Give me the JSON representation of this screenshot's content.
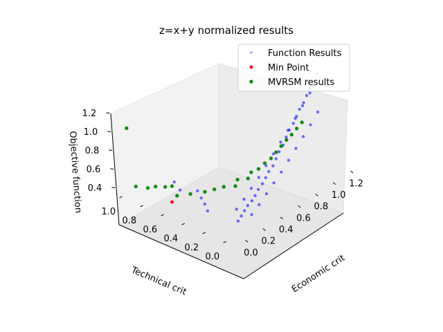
{
  "chart_data": {
    "type": "scatter",
    "projection": "3d",
    "title": "z=x+y normalized results",
    "xlabel": "Economic crit",
    "ylabel": "Technical crit",
    "zlabel": "Objective function",
    "xlim": [
      -0.1,
      1.4
    ],
    "ylim": [
      -0.1,
      1.1
    ],
    "zlim": [
      0.35,
      1.35
    ],
    "xticks": [
      "0.0",
      "0.2",
      "0.4",
      "0.6",
      "0.8",
      "1.0",
      "1.2"
    ],
    "yticks": [
      "0.0",
      "0.2",
      "0.4",
      "0.6",
      "0.8",
      "1.0"
    ],
    "zticks": [
      "0.4",
      "0.6",
      "0.8",
      "1.0",
      "1.2"
    ],
    "grid": false,
    "legend_position": "top-right",
    "legend": [
      {
        "label": "Function Results",
        "color": "#8080ff",
        "marker": "dot"
      },
      {
        "label": "Min Point",
        "color": "#ff0000",
        "marker": "dot"
      },
      {
        "label": "MVRSM results",
        "color": "#008000",
        "marker": "dot"
      }
    ],
    "series": [
      {
        "name": "Function Results",
        "color": "#0000ff",
        "points": [
          [
            0.1,
            0.05,
            0.42
          ],
          [
            0.15,
            0.06,
            0.44
          ],
          [
            0.2,
            0.07,
            0.46
          ],
          [
            0.25,
            0.08,
            0.48
          ],
          [
            0.3,
            0.08,
            0.5
          ],
          [
            0.35,
            0.09,
            0.52
          ],
          [
            0.4,
            0.1,
            0.55
          ],
          [
            0.45,
            0.1,
            0.58
          ],
          [
            0.5,
            0.11,
            0.61
          ],
          [
            0.55,
            0.12,
            0.64
          ],
          [
            0.6,
            0.12,
            0.67
          ],
          [
            0.65,
            0.13,
            0.71
          ],
          [
            0.7,
            0.14,
            0.75
          ],
          [
            0.75,
            0.14,
            0.79
          ],
          [
            0.8,
            0.15,
            0.84
          ],
          [
            0.85,
            0.16,
            0.88
          ],
          [
            0.9,
            0.16,
            0.92
          ],
          [
            0.95,
            0.17,
            0.96
          ],
          [
            1.0,
            0.18,
            1.0
          ],
          [
            1.05,
            0.18,
            1.04
          ],
          [
            1.1,
            0.19,
            1.08
          ],
          [
            1.15,
            0.2,
            1.12
          ],
          [
            1.2,
            0.2,
            1.17
          ],
          [
            1.25,
            0.21,
            1.21
          ],
          [
            0.22,
            0.02,
            0.43
          ],
          [
            0.32,
            0.03,
            0.47
          ],
          [
            0.42,
            0.04,
            0.52
          ],
          [
            0.52,
            0.05,
            0.57
          ],
          [
            0.62,
            0.06,
            0.62
          ],
          [
            0.72,
            0.07,
            0.68
          ],
          [
            0.82,
            0.08,
            0.74
          ],
          [
            0.92,
            0.09,
            0.8
          ],
          [
            1.02,
            0.1,
            0.86
          ],
          [
            1.12,
            0.11,
            0.93
          ],
          [
            0.18,
            0.13,
            0.46
          ],
          [
            0.28,
            0.14,
            0.5
          ],
          [
            0.38,
            0.15,
            0.55
          ],
          [
            0.48,
            0.16,
            0.6
          ],
          [
            0.58,
            0.17,
            0.66
          ],
          [
            0.68,
            0.18,
            0.72
          ],
          [
            0.78,
            0.19,
            0.78
          ],
          [
            0.88,
            0.2,
            0.84
          ],
          [
            0.98,
            0.21,
            0.9
          ],
          [
            1.08,
            0.22,
            0.97
          ],
          [
            1.18,
            0.23,
            1.04
          ],
          [
            0.05,
            0.3,
            0.44
          ],
          [
            0.08,
            0.35,
            0.47
          ],
          [
            0.1,
            0.4,
            0.5
          ],
          [
            0.12,
            0.45,
            0.54
          ],
          [
            0.04,
            0.55,
            0.55
          ],
          [
            0.06,
            0.62,
            0.59
          ]
        ]
      },
      {
        "name": "Min Point",
        "color": "#ff0000",
        "points": [
          [
            0.02,
            0.62,
            0.4
          ]
        ]
      },
      {
        "name": "MVRSM results",
        "color": "#008000",
        "points": [
          [
            0.0,
            1.0,
            1.02
          ],
          [
            0.0,
            0.95,
            0.42
          ],
          [
            0.02,
            0.85,
            0.44
          ],
          [
            0.05,
            0.8,
            0.46
          ],
          [
            0.1,
            0.75,
            0.45
          ],
          [
            0.12,
            0.7,
            0.47
          ],
          [
            0.15,
            0.55,
            0.44
          ],
          [
            0.25,
            0.4,
            0.5
          ],
          [
            0.3,
            0.35,
            0.52
          ],
          [
            0.4,
            0.3,
            0.56
          ],
          [
            0.5,
            0.25,
            0.6
          ],
          [
            0.55,
            0.22,
            0.62
          ],
          [
            0.6,
            0.2,
            0.66
          ],
          [
            0.65,
            0.18,
            0.69
          ],
          [
            0.7,
            0.17,
            0.73
          ],
          [
            0.75,
            0.16,
            0.77
          ],
          [
            0.8,
            0.15,
            0.81
          ],
          [
            0.85,
            0.14,
            0.84
          ],
          [
            0.9,
            0.13,
            0.88
          ],
          [
            0.95,
            0.12,
            0.92
          ],
          [
            0.35,
            0.28,
            0.53
          ],
          [
            0.45,
            0.24,
            0.57
          ],
          [
            0.2,
            0.45,
            0.48
          ],
          [
            0.08,
            0.62,
            0.43
          ]
        ]
      }
    ]
  }
}
